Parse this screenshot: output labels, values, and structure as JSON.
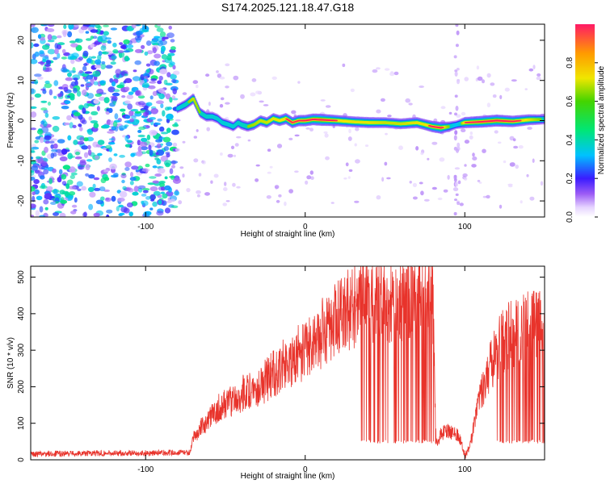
{
  "title": "S174.2025.121.18.47.G18",
  "colors": {
    "snr_line": "#e8332b",
    "signal_track_core": "#ff1a1a",
    "scatter_purple": "#7a1fe0",
    "frame": "#000000"
  },
  "chart_data": [
    {
      "type": "heatmap",
      "subtype": "spectrogram",
      "xlabel": "Height of straight line (km)",
      "ylabel": "Frequency (Hz)",
      "xlim": [
        -172,
        150
      ],
      "ylim": [
        -24,
        24
      ],
      "x_ticks": [
        -100,
        0,
        100
      ],
      "y_ticks": [
        -20,
        -10,
        0,
        10,
        20
      ],
      "grid": false,
      "noise_region": {
        "x": [
          -172,
          -80
        ],
        "y": [
          -24,
          24
        ],
        "amplitude_range": [
          0.0,
          0.45
        ]
      },
      "signal_track": {
        "x": [
          -80,
          -75,
          -70,
          -66,
          -62,
          -58,
          -55,
          -52,
          -48,
          -45,
          -42,
          -40,
          -36,
          -32,
          -28,
          -24,
          -20,
          -16,
          -12,
          -8,
          -4,
          0,
          5,
          10,
          20,
          30,
          40,
          50,
          60,
          70,
          75,
          80,
          85,
          90,
          95,
          100,
          110,
          120,
          130,
          140,
          150
        ],
        "y": [
          3,
          4,
          5.5,
          2,
          1,
          1,
          0.5,
          -0.5,
          -1,
          -1.5,
          -0.5,
          -1,
          -1.5,
          -1,
          0,
          -0.5,
          0.5,
          0,
          0.5,
          -0.5,
          0,
          0,
          0.3,
          0.2,
          0,
          -0.3,
          -0.5,
          -0.5,
          -0.8,
          -0.5,
          -1,
          -1.5,
          -1.8,
          -1.5,
          -1,
          -0.5,
          -0.3,
          0,
          -0.2,
          0.2,
          0.3
        ],
        "amplitude": [
          0.45,
          0.55,
          0.7,
          0.6,
          0.55,
          0.5,
          0.5,
          0.5,
          0.5,
          0.5,
          0.55,
          0.55,
          0.6,
          0.65,
          0.7,
          0.7,
          0.75,
          0.75,
          0.8,
          0.8,
          0.8,
          0.85,
          0.9,
          0.95,
          0.8,
          0.75,
          0.75,
          0.7,
          0.7,
          0.75,
          0.75,
          0.85,
          0.9,
          0.6,
          0.35,
          0.8,
          0.9,
          0.95,
          0.85,
          0.75,
          0.55
        ]
      },
      "colorbar": {
        "label": "Normalized spectral amplitude",
        "lim": [
          0,
          1
        ],
        "ticks": [
          "0.0",
          "0.2",
          "0.4",
          "0.6",
          "0.8"
        ]
      }
    },
    {
      "type": "line",
      "xlabel": "Height of straight line (km)",
      "ylabel": "SNR (10 * v/v)",
      "xlim": [
        -172,
        150
      ],
      "ylim": [
        0,
        530
      ],
      "x_ticks": [
        -100,
        0,
        100
      ],
      "y_ticks": [
        0,
        100,
        200,
        300,
        400,
        500
      ],
      "grid": false,
      "series": [
        {
          "x": [
            -172,
            -150,
            -130,
            -110,
            -90,
            -80,
            -75,
            -72,
            -70,
            -65,
            -60,
            -55,
            -50,
            -45,
            -40,
            -35,
            -30,
            -25,
            -20,
            -15,
            -10,
            -5,
            0,
            5,
            10,
            15,
            20,
            25,
            30,
            35,
            40,
            45,
            50,
            55,
            60,
            65,
            70,
            75,
            80,
            82,
            85,
            90,
            95,
            98,
            100,
            103,
            106,
            110,
            115,
            120,
            125,
            130,
            135,
            140,
            145,
            150
          ],
          "y": [
            15,
            17,
            18,
            18,
            19,
            20,
            20,
            20,
            60,
            90,
            110,
            140,
            155,
            165,
            180,
            190,
            200,
            215,
            235,
            255,
            270,
            290,
            300,
            320,
            345,
            375,
            385,
            405,
            420,
            430,
            440,
            445,
            440,
            445,
            440,
            445,
            440,
            435,
            440,
            40,
            70,
            80,
            70,
            45,
            10,
            35,
            95,
            180,
            240,
            300,
            330,
            345,
            360,
            360,
            365,
            355
          ],
          "dropout_floor": 45,
          "dropout_ranges": [
            [
              35,
              82
            ],
            [
              120,
              150
            ]
          ]
        }
      ]
    }
  ]
}
